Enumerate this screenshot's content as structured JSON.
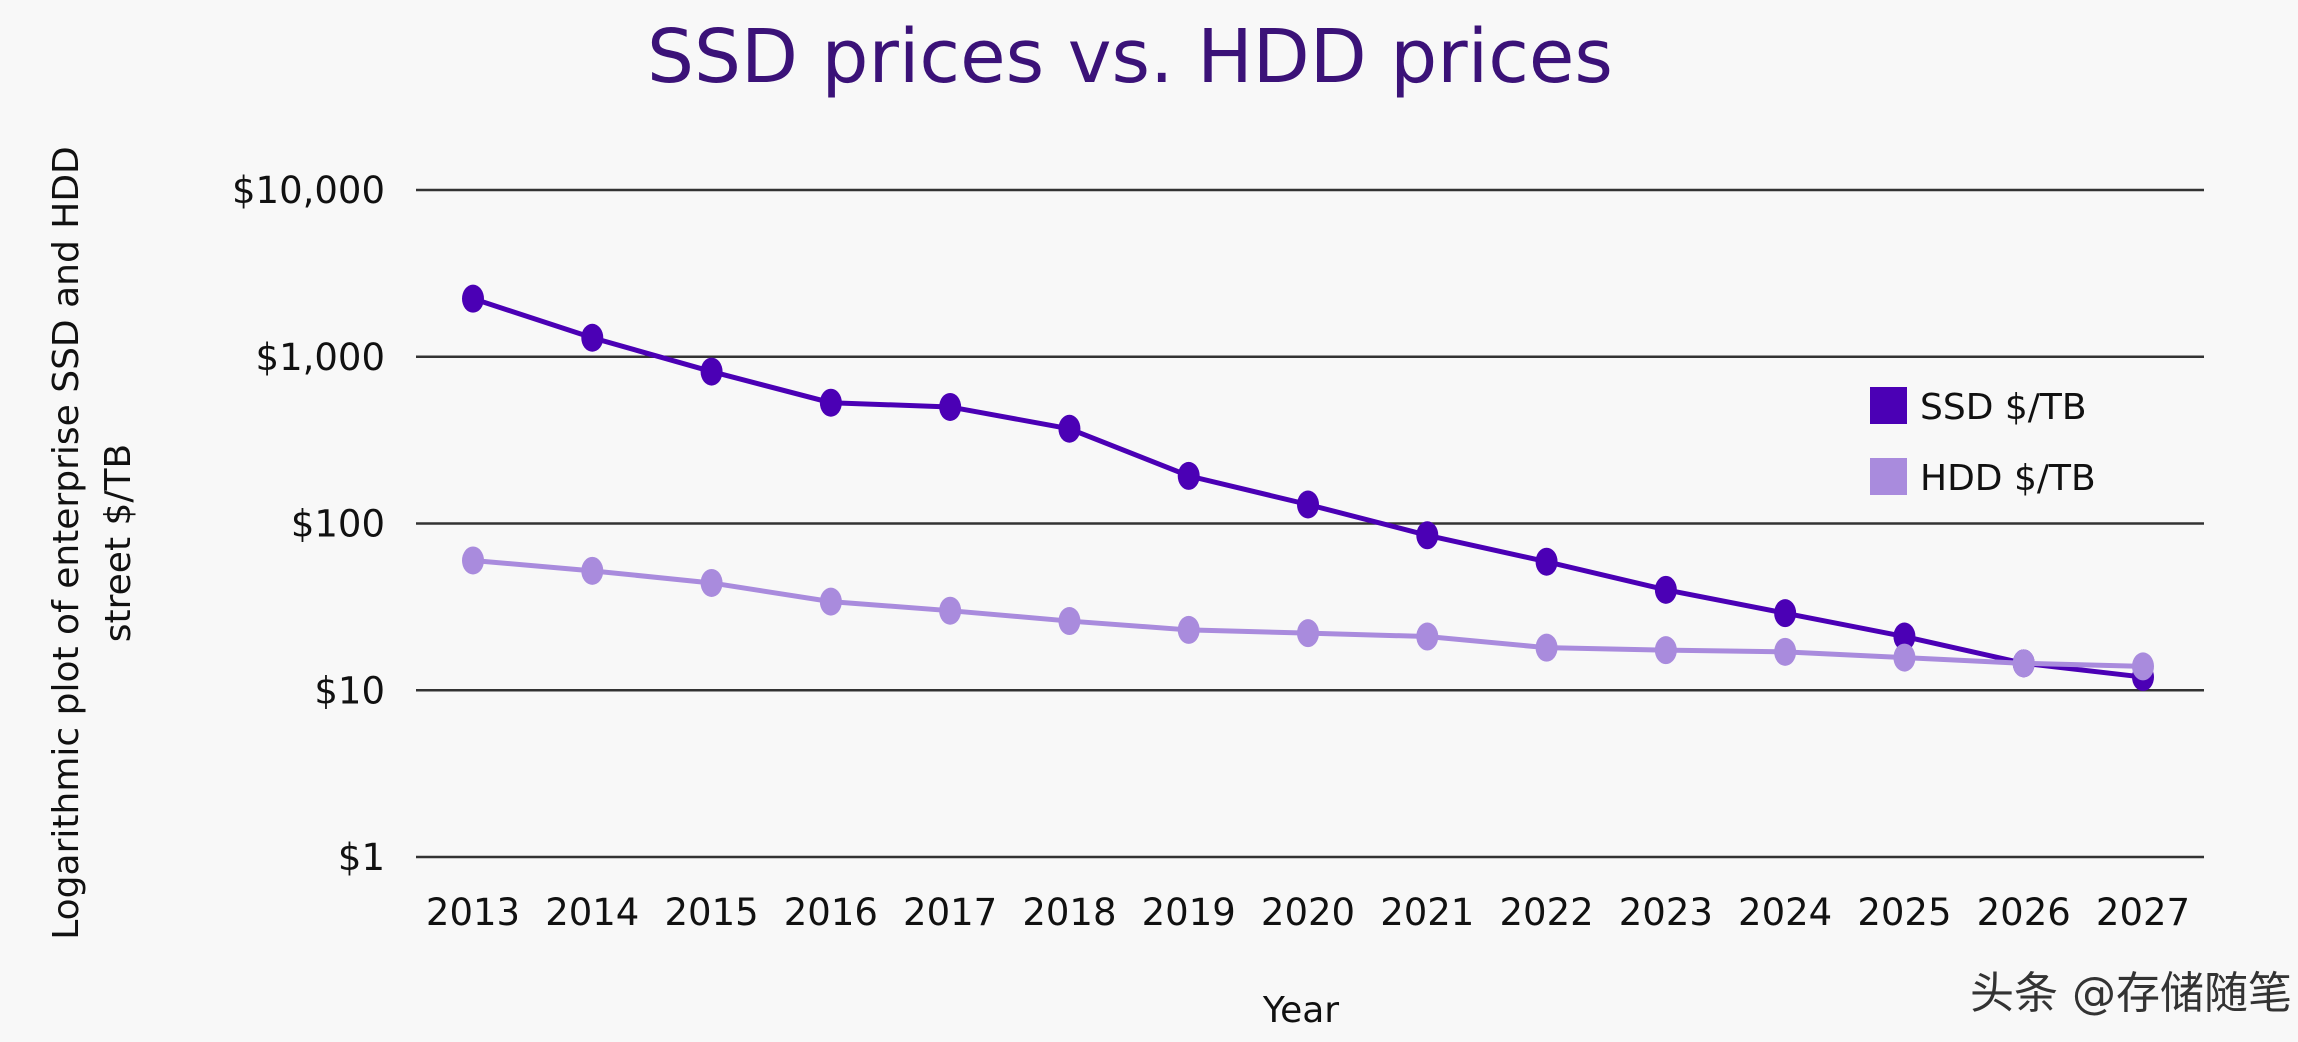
{
  "chart_data": {
    "type": "line",
    "title": "SSD prices vs. HDD prices",
    "xlabel": "Year",
    "ylabel": "Logarithmic plot of enterprise SSD and HDD street $/TB",
    "ylabel_lines": [
      "Logarithmic plot of enterprise SSD and HDD",
      "street $/TB"
    ],
    "y_scale": "log",
    "ylim": [
      1,
      10000
    ],
    "y_ticks": [
      1,
      10,
      100,
      1000,
      10000
    ],
    "y_tick_labels": [
      "$1",
      "$10",
      "$100",
      "$1,000",
      "$10,000"
    ],
    "grid": "horizontal",
    "legend_position": "right",
    "x": [
      "2013",
      "2014",
      "2015",
      "2016",
      "2017",
      "2018",
      "2019",
      "2020",
      "2021",
      "2022",
      "2023",
      "2024",
      "2025",
      "2026",
      "2027"
    ],
    "series": [
      {
        "name": "SSD $/TB",
        "color": "#4b00b5",
        "values": [
          2230,
          1300,
          815,
          530,
          500,
          370,
          193,
          130,
          85,
          59,
          40,
          29,
          21,
          14.5,
          12
        ]
      },
      {
        "name": "HDD $/TB",
        "color": "#a98bdd",
        "values": [
          60,
          52,
          44,
          34,
          30,
          26,
          23,
          22,
          21,
          18,
          17.4,
          17,
          15.7,
          14.5,
          13.9
        ]
      }
    ]
  },
  "watermark": "头条 @存储随笔"
}
